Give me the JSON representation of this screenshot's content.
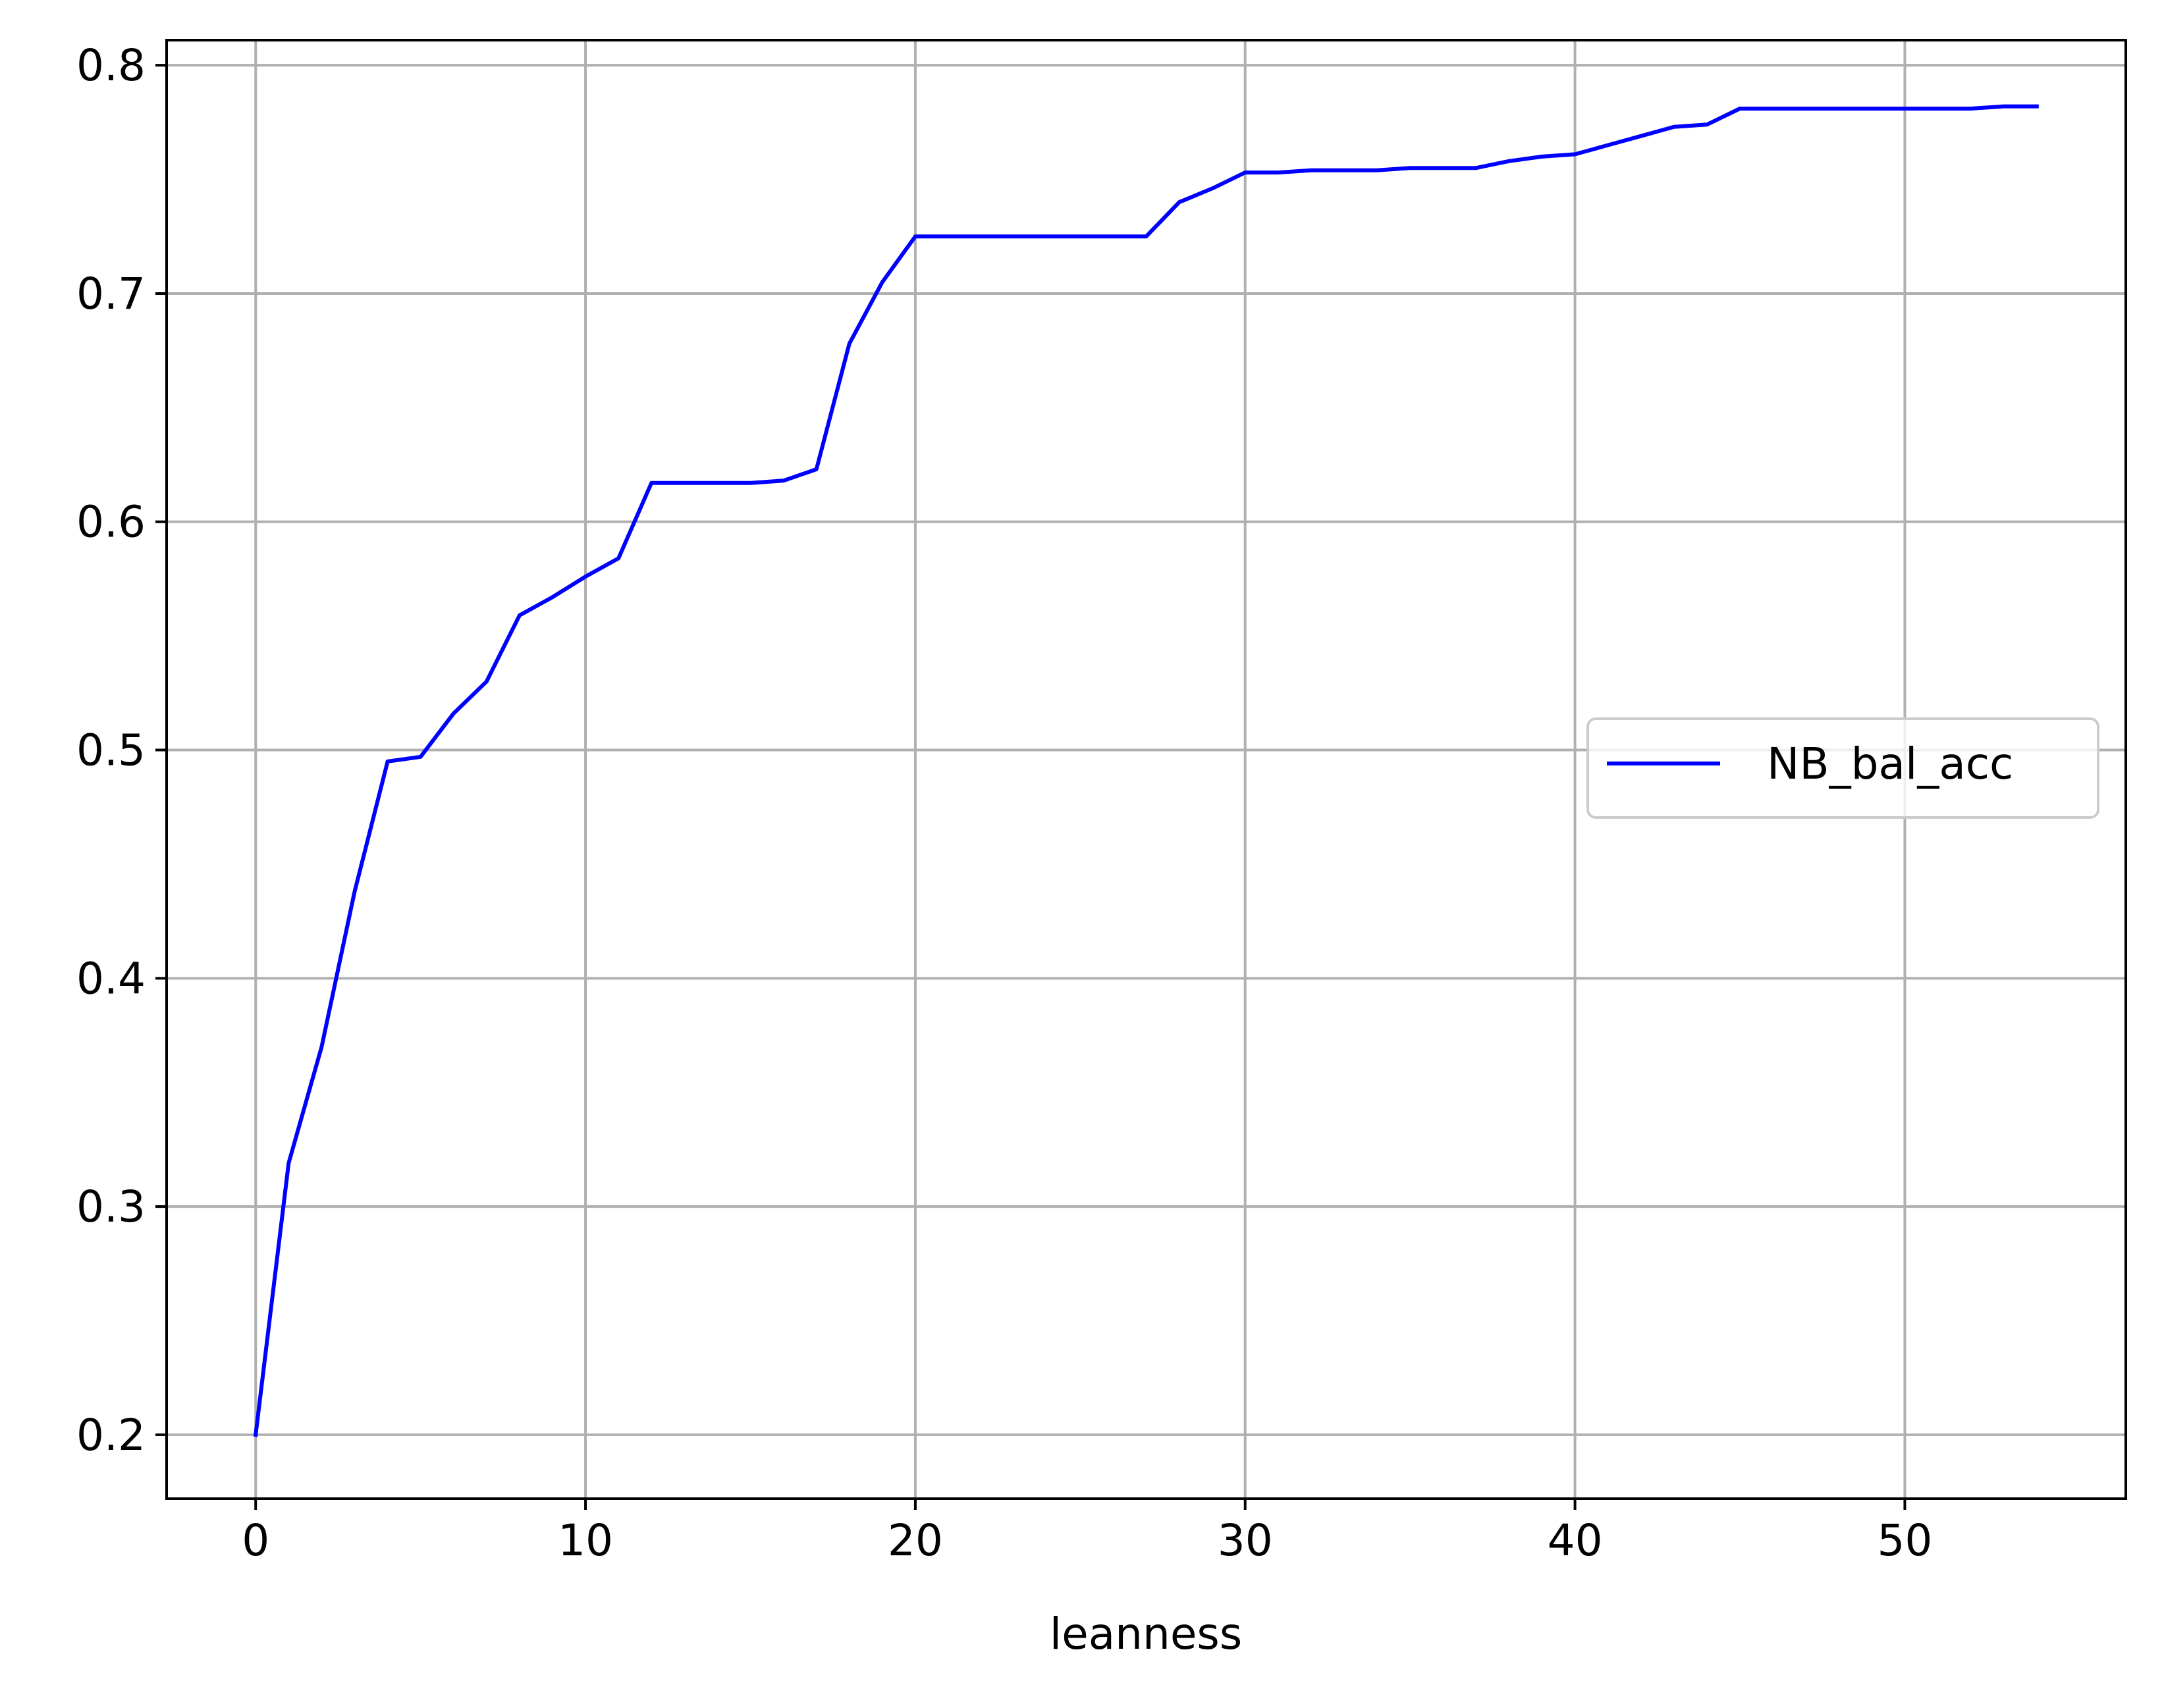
{
  "chart_data": {
    "type": "line",
    "title": "",
    "xlabel": "leanness",
    "ylabel": "",
    "xlim": [
      -2.7,
      56.7
    ],
    "ylim": [
      0.172,
      0.811
    ],
    "x_ticks": [
      0,
      10,
      20,
      30,
      40,
      50
    ],
    "x_tick_labels": [
      "0",
      "10",
      "20",
      "30",
      "40",
      "50"
    ],
    "y_ticks": [
      0.2,
      0.3,
      0.4,
      0.5,
      0.6,
      0.7,
      0.8
    ],
    "y_tick_labels": [
      "0.2",
      "0.3",
      "0.4",
      "0.5",
      "0.6",
      "0.7",
      "0.8"
    ],
    "grid": true,
    "legend": {
      "position": "center-right",
      "entries": [
        "NB_bal_acc"
      ]
    },
    "series": [
      {
        "name": "NB_bal_acc",
        "color": "#0000ff",
        "x": [
          0,
          1,
          2,
          3,
          4,
          5,
          6,
          7,
          8,
          9,
          10,
          11,
          12,
          13,
          14,
          15,
          16,
          17,
          18,
          19,
          20,
          21,
          22,
          23,
          24,
          25,
          26,
          27,
          28,
          29,
          30,
          31,
          32,
          33,
          34,
          35,
          36,
          37,
          38,
          39,
          40,
          41,
          42,
          43,
          44,
          45,
          46,
          47,
          48,
          49,
          50,
          51,
          52,
          53,
          54
        ],
        "y": [
          0.2,
          0.319,
          0.37,
          0.438,
          0.495,
          0.497,
          0.516,
          0.53,
          0.559,
          0.567,
          0.576,
          0.584,
          0.617,
          0.617,
          0.617,
          0.617,
          0.618,
          0.623,
          0.678,
          0.705,
          0.725,
          0.725,
          0.725,
          0.725,
          0.725,
          0.725,
          0.725,
          0.725,
          0.74,
          0.746,
          0.753,
          0.753,
          0.754,
          0.754,
          0.754,
          0.755,
          0.755,
          0.755,
          0.758,
          0.76,
          0.761,
          0.765,
          0.769,
          0.773,
          0.774,
          0.781,
          0.781,
          0.781,
          0.781,
          0.781,
          0.781,
          0.781,
          0.781,
          0.782,
          0.782
        ]
      }
    ]
  }
}
